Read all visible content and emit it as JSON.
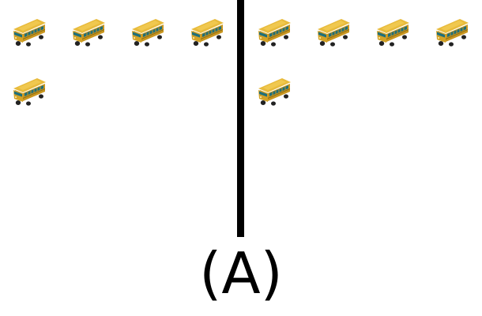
{
  "caption": "(A)",
  "icon": "school-bus-icon",
  "colors": {
    "bus_body": "#d9a82a",
    "bus_roof": "#e6b93a",
    "bus_window": "#1f6f7a",
    "bus_wheel": "#222222",
    "divider": "#000000"
  },
  "left_group": {
    "bus_count": 5
  },
  "right_group": {
    "bus_count": 5
  }
}
